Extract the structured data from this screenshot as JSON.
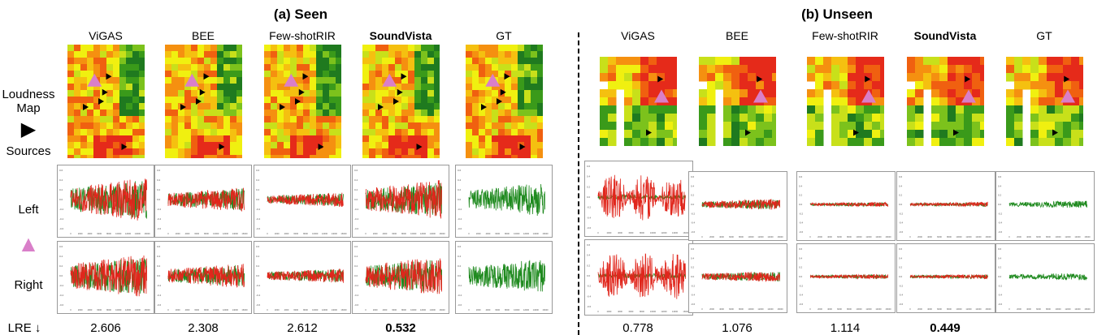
{
  "sections": {
    "seen": "(a) Seen",
    "unseen": "(b) Unseen"
  },
  "methods_seen": [
    "ViGAS",
    "BEE",
    "Few-shotRIR",
    "SoundVista",
    "GT"
  ],
  "methods_unseen": [
    "ViGAS",
    "BEE",
    "Few-shotRIR",
    "SoundVista",
    "GT"
  ],
  "highlight_method": "SoundVista",
  "row_labels": {
    "loudness_map": "Loudness Map",
    "sources_marker": "▶",
    "sources": "Sources",
    "left": "Left",
    "listener_marker": "▲",
    "right": "Right",
    "metric": "LRE ↓"
  },
  "lre_seen": [
    "2.606",
    "2.308",
    "2.612",
    "0.532",
    ""
  ],
  "lre_unseen": [
    "0.778",
    "1.076",
    "1.114",
    "0.449",
    ""
  ],
  "waveform_axes": {
    "y_ticks": [
      "0.6",
      "0.4",
      "0.2",
      "0.0",
      "-0.2",
      "-0.4",
      "-0.6"
    ],
    "x_ticks": [
      "0",
      "2000",
      "4000",
      "6000",
      "8000",
      "10000",
      "12000",
      "14000",
      "16000"
    ]
  },
  "colors": {
    "left_right_pred": "#e0261c",
    "gt": "#1f8a1f",
    "listener": "#d97fc9",
    "source": "#000000"
  }
}
